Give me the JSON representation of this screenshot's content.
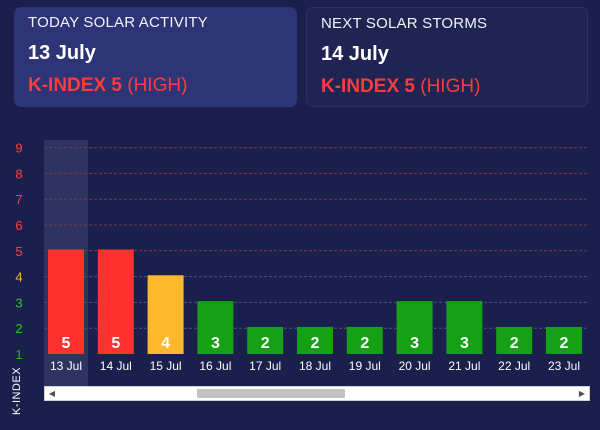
{
  "today_card": {
    "title": "TODAY SOLAR ACTIVITY",
    "date": "13 July",
    "kindex_label": "K-INDEX 5",
    "level": "(HIGH)"
  },
  "next_card": {
    "title": "NEXT SOLAR STORMS",
    "date": "14 July",
    "kindex_label": "K-INDEX 5",
    "level": "(HIGH)"
  },
  "colors": {
    "high": "#ff3131",
    "moderate": "#fdb92e",
    "low": "#16a016",
    "background": "#1b1f4c",
    "highlight": "#2e3362"
  },
  "scrollbar": {
    "left_arrow": "◀",
    "right_arrow": "▶"
  },
  "chart_data": {
    "type": "bar",
    "ylabel": "K-INDEX",
    "ylim": [
      1,
      9
    ],
    "yticks": [
      "1",
      "2",
      "3",
      "4",
      "5",
      "6",
      "7",
      "8",
      "9"
    ],
    "categories": [
      "13 Jul",
      "14 Jul",
      "15 Jul",
      "16 Jul",
      "17 Jul",
      "18 Jul",
      "19 Jul",
      "20 Jul",
      "21 Jul",
      "22 Jul",
      "23 Jul"
    ],
    "values": [
      5,
      5,
      4,
      3,
      2,
      2,
      2,
      3,
      3,
      2,
      2
    ],
    "highlighted": "13 Jul",
    "grid": "dashed horizontal"
  }
}
